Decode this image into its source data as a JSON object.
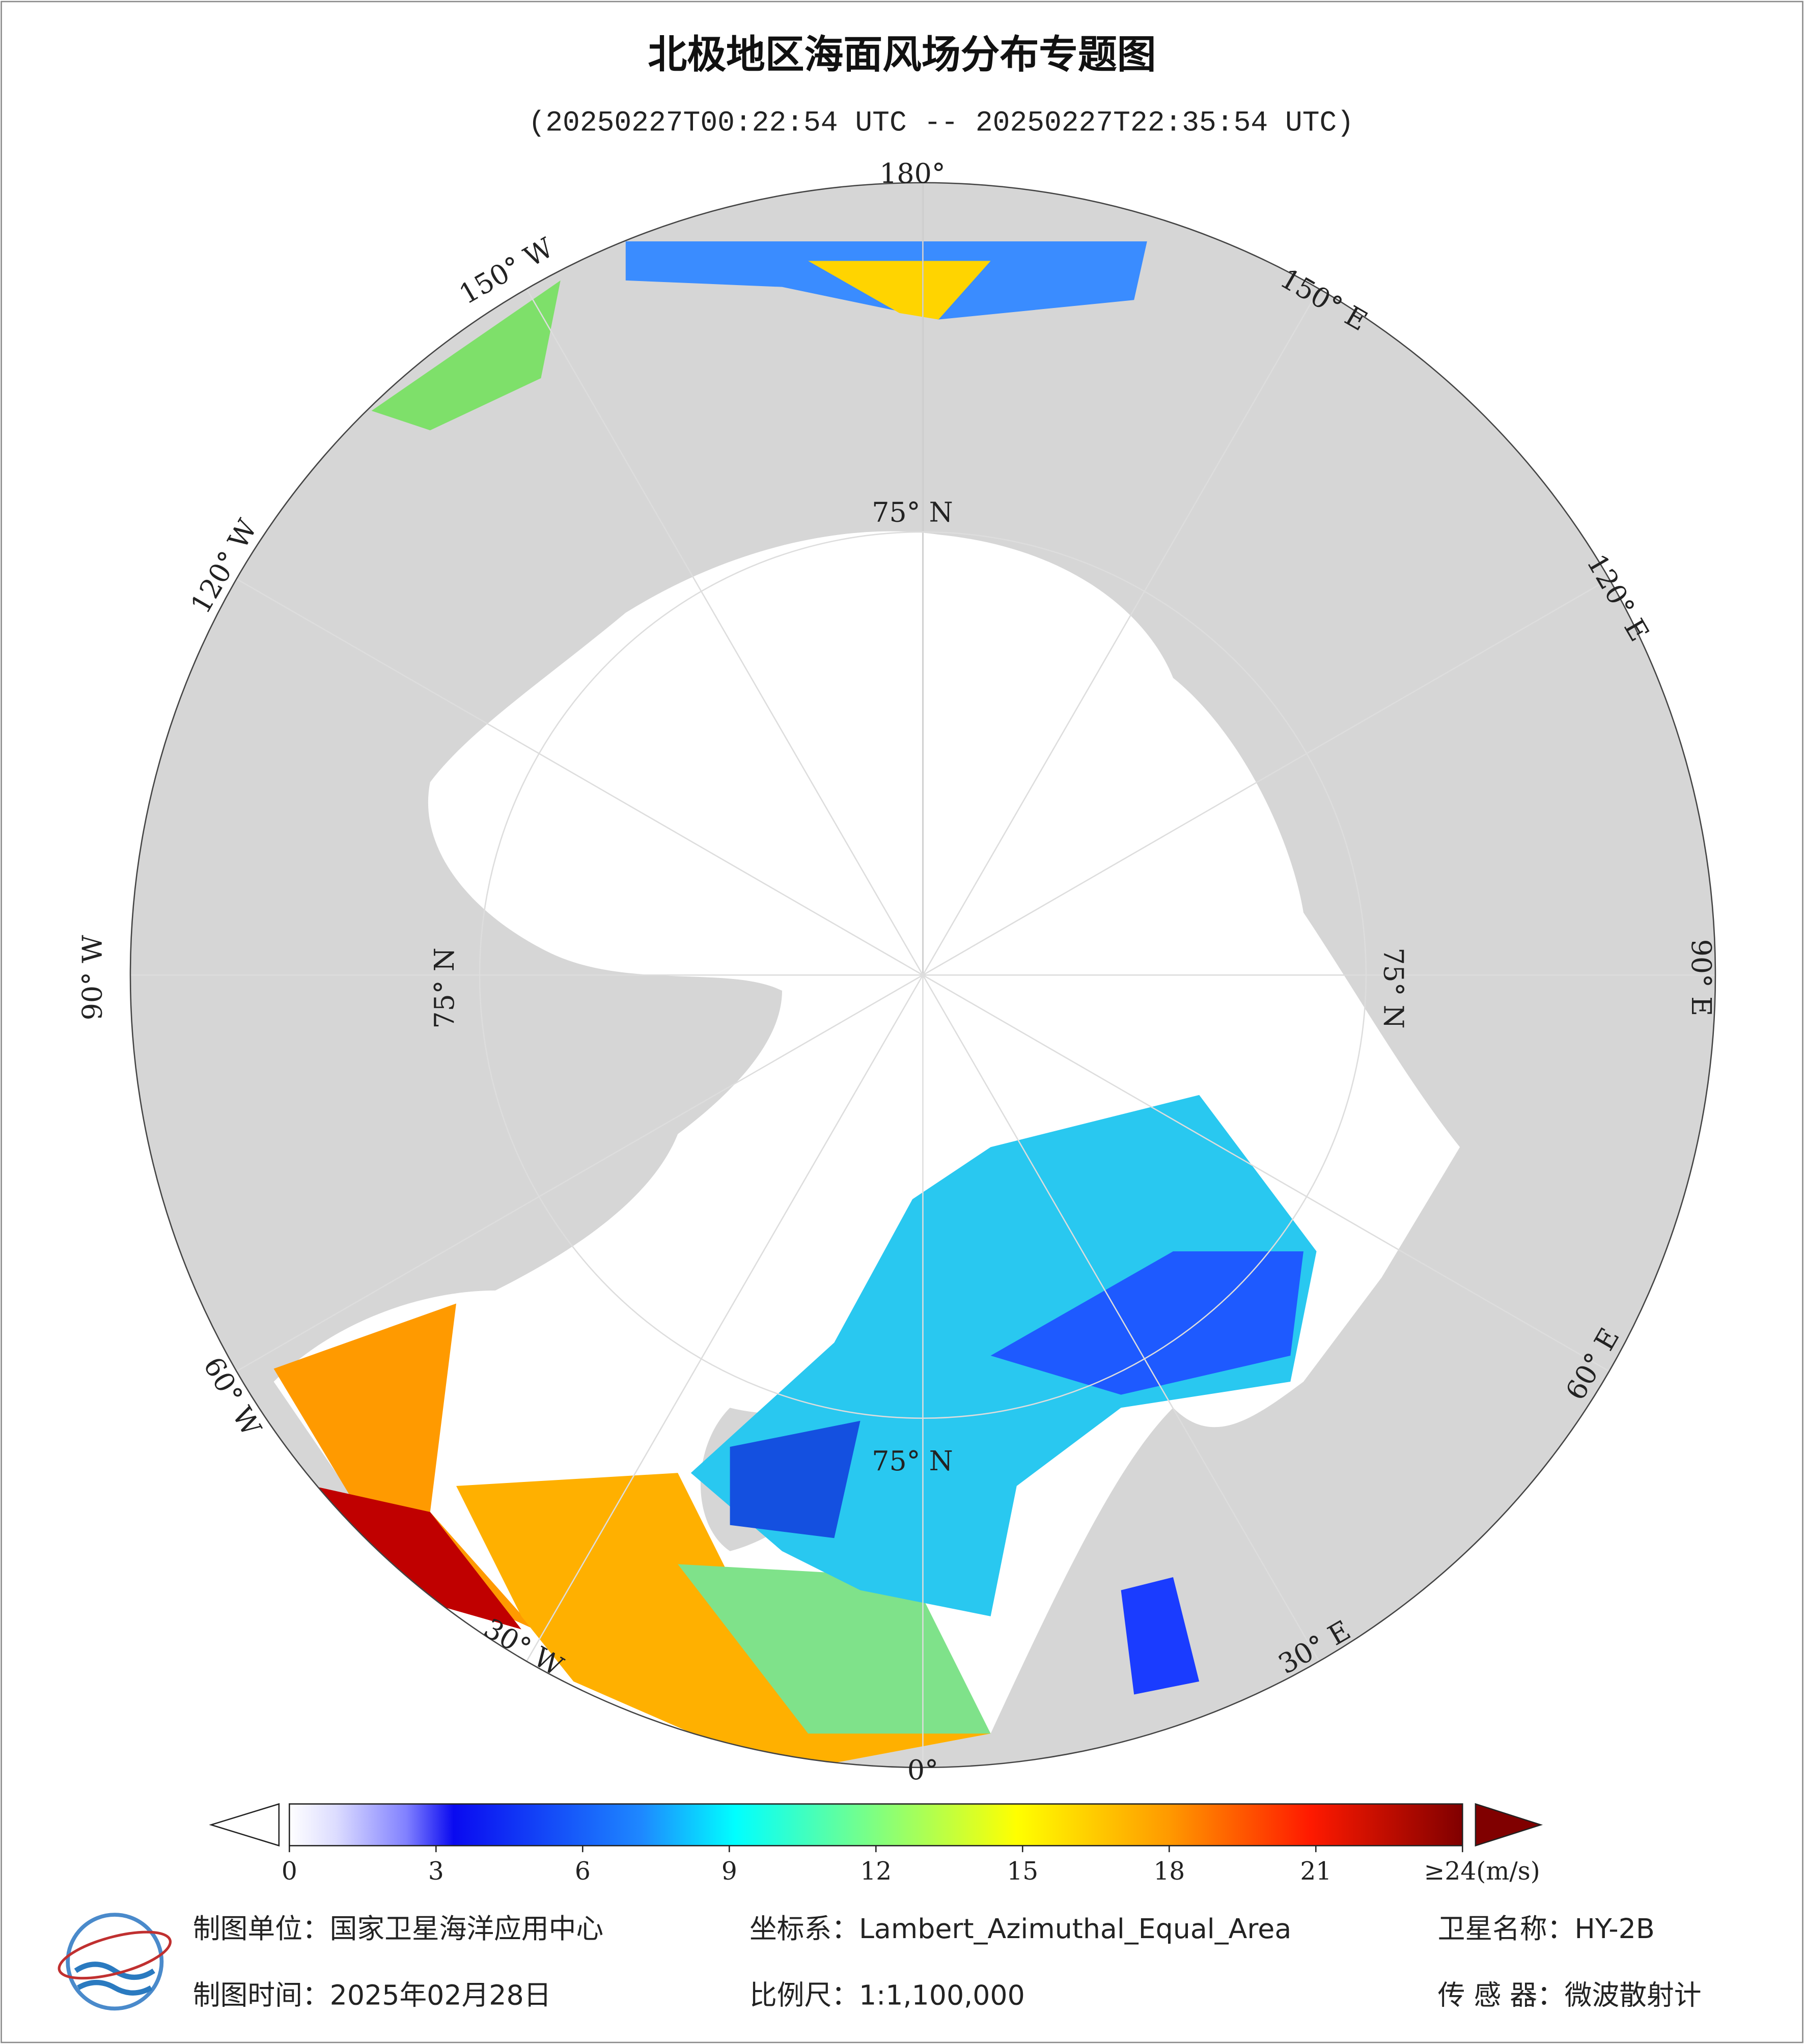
{
  "chart_data": {
    "type": "map",
    "title": "北极地区海面风场分布专题图",
    "subtitle": "(20250227T00:22:54 UTC -- 20250227T22:35:54 UTC)",
    "lon_labels": [
      "180°",
      "150° E",
      "120° E",
      "90° E",
      "60° E",
      "30° E",
      "0°",
      "30° W",
      "60° W",
      "90° W",
      "120° W",
      "150° W"
    ],
    "lat_labels": [
      "75° N",
      "75° N",
      "75° N",
      "75° N"
    ],
    "colorbar": {
      "clim": [
        0,
        24
      ],
      "ticks": [
        0,
        3,
        6,
        9,
        12,
        15,
        18,
        21,
        {
          "value": 24,
          "label": "≥24(m/s)"
        }
      ]
    },
    "footer": {
      "unit": "制图单位：国家卫星海洋应用中心",
      "crs": "坐标系：Lambert_Azimuthal_Equal_Area",
      "satellite": "卫星名称：HY-2B",
      "date": "制图时间：2025年02月28日",
      "scale": "比例尺：1:1,100,000",
      "sensor": "传 感 器：微波散射计"
    }
  }
}
